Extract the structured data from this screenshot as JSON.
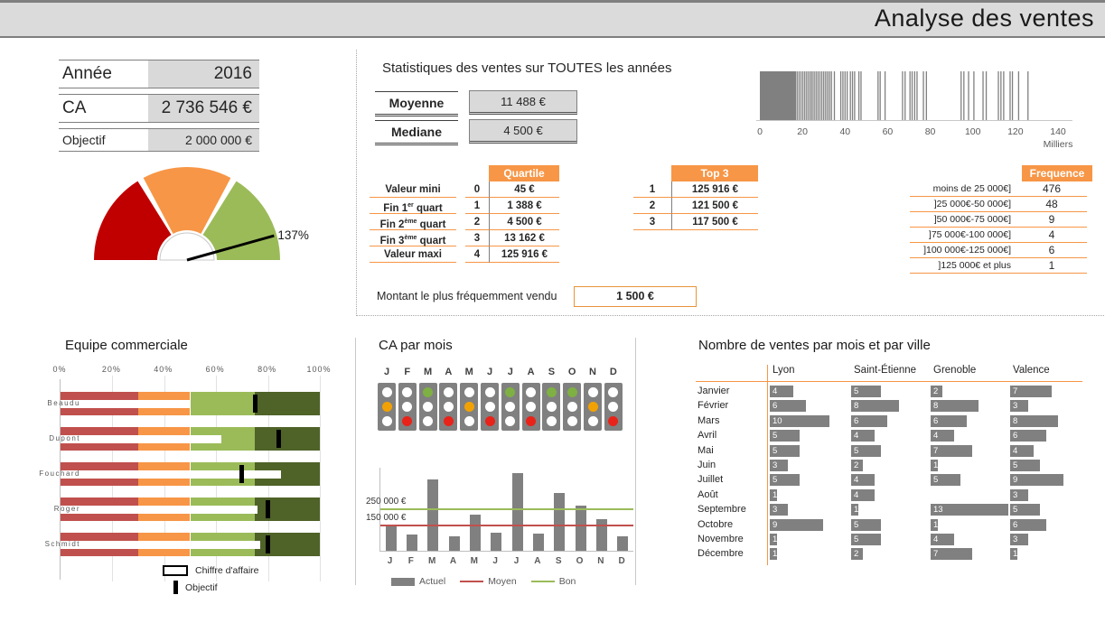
{
  "title": "Analyse des ventes",
  "kpi": {
    "rows": [
      [
        "Année",
        "2016"
      ],
      [
        "CA",
        "2 736 546 €"
      ],
      [
        "Objectif",
        "2 000 000 €"
      ]
    ]
  },
  "stats": {
    "title": "Statistiques des ventes sur TOUTES les années",
    "moyenne_label": "Moyenne",
    "moyenne_value": "11 488 €",
    "mediane_label": "Mediane",
    "mediane_value": "4 500 €",
    "quartile_header": "Quartile",
    "top3_header": "Top 3",
    "frequence_header": "Frequence",
    "montant_label": "Montant le plus fréquemment vendu",
    "montant_value": "1 500 €"
  },
  "stats_tables": {
    "quartile_rows": [
      {
        "label": "Valeur mini",
        "sup": "",
        "post": "",
        "idx": "0",
        "value": "45 €"
      },
      {
        "label": "Fin 1",
        "sup": "er",
        "post": " quart",
        "idx": "1",
        "value": "1 388 €"
      },
      {
        "label": "Fin 2",
        "sup": "ème",
        "post": " quart",
        "idx": "2",
        "value": "4 500 €"
      },
      {
        "label": "Fin 3",
        "sup": "ème",
        "post": " quart",
        "idx": "3",
        "value": "13 162 €"
      },
      {
        "label": "Valeur maxi",
        "sup": "",
        "post": "",
        "idx": "4",
        "value": "125 916 €"
      }
    ],
    "top3_rows": [
      {
        "idx": "1",
        "value": "125 916 €"
      },
      {
        "idx": "2",
        "value": "121 500 €"
      },
      {
        "idx": "3",
        "value": "117 500 €"
      }
    ],
    "frequence_rows": [
      {
        "label": "moins de 25 000€]",
        "value": "476"
      },
      {
        "label": "]25 000€-50 000€]",
        "value": "48"
      },
      {
        "label": "]50 000€-75 000€]",
        "value": "9"
      },
      {
        "label": "]75 000€-100 000€]",
        "value": "4"
      },
      {
        "label": "]100 000€-125 000€]",
        "value": "6"
      },
      {
        "label": "]125 000€ et plus",
        "value": "1"
      }
    ]
  },
  "equipe": {
    "title": "Equipe commerciale",
    "legend_ca": "Chiffre d'affaire",
    "legend_obj": "Objectif"
  },
  "ca_mois": {
    "title": "CA par mois",
    "legend": [
      "Actuel",
      "Moyen",
      "Bon"
    ]
  },
  "ventes_ville": {
    "title": "Nombre de ventes par mois et par ville"
  },
  "chart_data": [
    {
      "name": "gauge",
      "type": "pie",
      "title": "Jauge objectif",
      "value_percent": 137,
      "label": "137%",
      "scale": [
        0,
        150
      ],
      "segments": [
        {
          "from": 0,
          "to": 50,
          "color": "#C00000"
        },
        {
          "from": 50,
          "to": 100,
          "color": "#F79646"
        },
        {
          "from": 100,
          "to": 150,
          "color": "#9BBB59"
        }
      ]
    },
    {
      "name": "distribution",
      "type": "strip",
      "x_ticks": [
        0,
        20,
        40,
        60,
        80,
        100,
        120,
        140
      ],
      "x_axis_unit": "Milliers",
      "x_max": 140,
      "solid_block": [
        0,
        17
      ],
      "line_positions": [
        17.5,
        18.4,
        19.3,
        20.2,
        21.1,
        22,
        22.9,
        23.8,
        24.6,
        25.5,
        26.4,
        27.3,
        28.2,
        29.1,
        30,
        30.9,
        31.8,
        32.7,
        33.6,
        35,
        38,
        39,
        40,
        41,
        42.5,
        43.5,
        44.5,
        46.5,
        47.5,
        55.5,
        56.5,
        58.8,
        67,
        68.2,
        70.5,
        71.5,
        72.7,
        73.8,
        76.8,
        78.2,
        94.5,
        95.8,
        98,
        100.5,
        104.8,
        106.3,
        112,
        113.2,
        114.5,
        117.5,
        118.6,
        121.5,
        125.9
      ],
      "bar_color": "#808080"
    },
    {
      "name": "equipe",
      "type": "bar",
      "title": "Equipe commerciale",
      "categories": [
        "Beaudu",
        "Dupont",
        "Fouchard",
        "Roger",
        "Schmidt"
      ],
      "series": [
        {
          "name": "Chiffre d'affaire",
          "values": [
            50,
            62,
            85,
            76,
            77
          ]
        },
        {
          "name": "Objectif",
          "values": [
            75,
            84,
            70,
            80,
            80
          ]
        }
      ],
      "unit": "%",
      "bands": [
        {
          "from": 0,
          "to": 30,
          "color": "#C0504D"
        },
        {
          "from": 30,
          "to": 50,
          "color": "#F79646"
        },
        {
          "from": 50,
          "to": 75,
          "color": "#9BBB59"
        },
        {
          "from": 75,
          "to": 100,
          "color": "#4F6228"
        }
      ],
      "x_ticks": [
        "0%",
        "20%",
        "40%",
        "60%",
        "80%",
        "100%"
      ]
    },
    {
      "name": "statuts_mois",
      "type": "heatmap",
      "categories": [
        "J",
        "F",
        "M",
        "A",
        "M",
        "J",
        "J",
        "A",
        "S",
        "O",
        "N",
        "D"
      ],
      "status": [
        "orange",
        "red",
        "green",
        "red",
        "orange",
        "red",
        "green",
        "red",
        "green",
        "green",
        "orange",
        "red"
      ],
      "colors": {
        "green": "#7EB043",
        "orange": "#F2A104",
        "red": "#E8231A",
        "off": "#FFFFFF",
        "box": "#808080"
      }
    },
    {
      "name": "ca_par_mois",
      "type": "bar",
      "title": "CA par mois",
      "categories": [
        "J",
        "F",
        "M",
        "A",
        "M",
        "J",
        "J",
        "A",
        "S",
        "O",
        "N",
        "D"
      ],
      "values": [
        160000,
        100000,
        430000,
        85000,
        215000,
        110000,
        470000,
        105000,
        350000,
        270000,
        190000,
        85000
      ],
      "ylim": [
        0,
        500000
      ],
      "bar_color": "#808080",
      "ref_lines": [
        {
          "name": "Moyen",
          "value": 150000,
          "color": "#C0504D",
          "label": "150 000 €"
        },
        {
          "name": "Bon",
          "value": 250000,
          "color": "#9BBB59",
          "label": "250 000 €"
        }
      ],
      "legend": [
        "Actuel",
        "Moyen",
        "Bon"
      ]
    },
    {
      "name": "ventes_par_ville",
      "type": "table",
      "title": "Nombre de ventes par mois et par ville",
      "columns": [
        "Lyon",
        "Saint-Étienne",
        "Grenoble",
        "Valence"
      ],
      "row_labels": [
        "Janvier",
        "Février",
        "Mars",
        "Avril",
        "Mai",
        "Juin",
        "Juillet",
        "Août",
        "Septembre",
        "Octobre",
        "Novembre",
        "Décembre"
      ],
      "rows": [
        [
          4,
          5,
          2,
          7
        ],
        [
          6,
          8,
          8,
          3
        ],
        [
          10,
          6,
          6,
          8
        ],
        [
          5,
          4,
          4,
          6
        ],
        [
          5,
          5,
          7,
          4
        ],
        [
          3,
          2,
          1,
          5
        ],
        [
          5,
          4,
          5,
          9
        ],
        [
          1,
          4,
          null,
          3
        ],
        [
          3,
          1,
          13,
          5
        ],
        [
          9,
          5,
          1,
          6
        ],
        [
          1,
          5,
          4,
          3
        ],
        [
          1,
          2,
          7,
          1
        ]
      ],
      "bar_scale_max": 13,
      "bar_color": "#808080"
    }
  ]
}
